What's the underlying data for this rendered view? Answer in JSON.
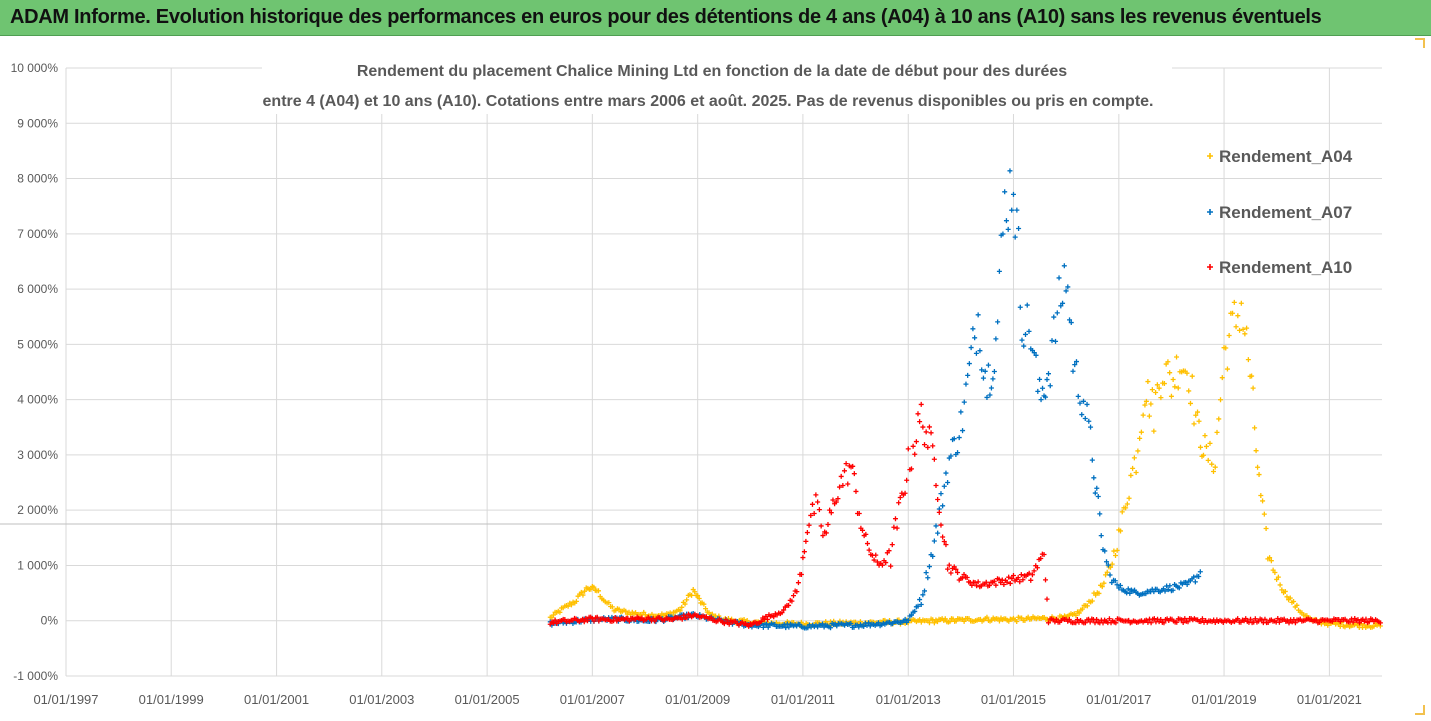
{
  "header": {
    "title": "ADAM Informe. Evolution historique des performances en euros pour des détentions de 4 ans (A04) à 10 ans (A10) sans les revenus éventuels"
  },
  "chart_data": {
    "type": "scatter",
    "title_lines": [
      "Rendement du placement Chalice Mining Ltd en fonction de la date de début pour des durées",
      "entre 4 (A04) et 10 ans (A10).  Cotations entre mars 2006 et août. 2025. Pas de revenus disponibles ou pris en compte."
    ],
    "ylim": [
      -1000,
      10000
    ],
    "y_unit": "%",
    "y_ticks": [
      "-1 000%",
      "0%",
      "1 000%",
      "2 000%",
      "3 000%",
      "4 000%",
      "5 000%",
      "6 000%",
      "7 000%",
      "8 000%",
      "9 000%",
      "10 000%"
    ],
    "y_tick_values": [
      -1000,
      0,
      1000,
      2000,
      3000,
      4000,
      5000,
      6000,
      7000,
      8000,
      9000,
      10000
    ],
    "x_range": [
      "1997-01-01",
      "2022-01-01"
    ],
    "x_ticks": [
      "01/01/1997",
      "01/01/1999",
      "01/01/2001",
      "01/01/2003",
      "01/01/2005",
      "01/01/2007",
      "01/01/2009",
      "01/01/2011",
      "01/01/2013",
      "01/01/2015",
      "01/01/2017",
      "01/01/2019",
      "01/01/2021"
    ],
    "x_tick_dates": [
      "1997-01-01",
      "1999-01-01",
      "2001-01-01",
      "2003-01-01",
      "2005-01-01",
      "2007-01-01",
      "2009-01-01",
      "2011-01-01",
      "2013-01-01",
      "2015-01-01",
      "2017-01-01",
      "2019-01-01",
      "2021-01-01"
    ],
    "grid": true,
    "legend_position": "right",
    "marker": "+",
    "series": [
      {
        "name": "Rendement_A04",
        "color": "#ffc000",
        "points": [
          [
            "2006-03-15",
            50
          ],
          [
            "2006-06-01",
            200
          ],
          [
            "2006-09-01",
            350
          ],
          [
            "2006-12-01",
            600
          ],
          [
            "2007-02-01",
            550
          ],
          [
            "2007-04-01",
            350
          ],
          [
            "2007-06-01",
            200
          ],
          [
            "2007-09-01",
            150
          ],
          [
            "2007-12-01",
            120
          ],
          [
            "2008-03-01",
            100
          ],
          [
            "2008-06-01",
            100
          ],
          [
            "2008-09-01",
            200
          ],
          [
            "2008-12-01",
            550
          ],
          [
            "2009-02-01",
            300
          ],
          [
            "2009-04-01",
            100
          ],
          [
            "2009-07-01",
            20
          ],
          [
            "2010-01-01",
            -30
          ],
          [
            "2010-07-01",
            -50
          ],
          [
            "2011-01-01",
            -60
          ],
          [
            "2011-07-01",
            -50
          ],
          [
            "2012-01-01",
            -40
          ],
          [
            "2012-07-01",
            -30
          ],
          [
            "2013-01-01",
            -20
          ],
          [
            "2013-07-01",
            0
          ],
          [
            "2014-01-01",
            10
          ],
          [
            "2014-07-01",
            30
          ],
          [
            "2015-01-01",
            20
          ],
          [
            "2015-07-01",
            40
          ],
          [
            "2016-01-01",
            50
          ],
          [
            "2016-04-01",
            150
          ],
          [
            "2016-07-01",
            400
          ],
          [
            "2016-10-01",
            700
          ],
          [
            "2017-01-01",
            1500
          ],
          [
            "2017-03-01",
            2300
          ],
          [
            "2017-05-01",
            3000
          ],
          [
            "2017-07-01",
            4200
          ],
          [
            "2017-09-01",
            3800
          ],
          [
            "2017-11-01",
            4600
          ],
          [
            "2018-01-01",
            4300
          ],
          [
            "2018-03-01",
            4700
          ],
          [
            "2018-05-01",
            4500
          ],
          [
            "2018-07-01",
            3500
          ],
          [
            "2018-09-01",
            3000
          ],
          [
            "2018-11-01",
            2900
          ],
          [
            "2019-01-01",
            4800
          ],
          [
            "2019-03-01",
            5300
          ],
          [
            "2019-05-01",
            5700
          ],
          [
            "2019-07-01",
            4500
          ],
          [
            "2019-09-01",
            2500
          ],
          [
            "2019-11-01",
            1200
          ],
          [
            "2020-01-01",
            800
          ],
          [
            "2020-03-01",
            500
          ],
          [
            "2020-06-01",
            200
          ],
          [
            "2020-09-01",
            0
          ],
          [
            "2021-01-01",
            -50
          ],
          [
            "2021-06-01",
            -80
          ],
          [
            "2022-01-01",
            -90
          ]
        ]
      },
      {
        "name": "Rendement_A07",
        "color": "#0070c0",
        "points": [
          [
            "2006-03-15",
            -50
          ],
          [
            "2007-01-01",
            20
          ],
          [
            "2007-07-01",
            30
          ],
          [
            "2008-01-01",
            0
          ],
          [
            "2008-06-01",
            30
          ],
          [
            "2008-12-01",
            100
          ],
          [
            "2009-06-01",
            0
          ],
          [
            "2010-01-01",
            -80
          ],
          [
            "2010-07-01",
            -90
          ],
          [
            "2011-01-01",
            -100
          ],
          [
            "2011-07-01",
            -90
          ],
          [
            "2012-01-01",
            -80
          ],
          [
            "2012-07-01",
            -50
          ],
          [
            "2013-01-01",
            0
          ],
          [
            "2013-04-01",
            400
          ],
          [
            "2013-07-01",
            1400
          ],
          [
            "2013-10-01",
            2800
          ],
          [
            "2014-01-01",
            3500
          ],
          [
            "2014-03-01",
            4500
          ],
          [
            "2014-05-01",
            5500
          ],
          [
            "2014-07-01",
            4300
          ],
          [
            "2014-09-01",
            5000
          ],
          [
            "2014-11-01",
            7500
          ],
          [
            "2015-01-01",
            8000
          ],
          [
            "2015-03-01",
            5500
          ],
          [
            "2015-05-01",
            5200
          ],
          [
            "2015-07-01",
            4000
          ],
          [
            "2015-09-01",
            4500
          ],
          [
            "2015-11-01",
            5500
          ],
          [
            "2016-01-01",
            6300
          ],
          [
            "2016-03-01",
            4500
          ],
          [
            "2016-05-01",
            4000
          ],
          [
            "2016-07-01",
            3000
          ],
          [
            "2016-09-01",
            1500
          ],
          [
            "2016-11-01",
            800
          ],
          [
            "2017-01-01",
            600
          ],
          [
            "2017-05-01",
            500
          ],
          [
            "2017-09-01",
            550
          ],
          [
            "2018-01-01",
            600
          ],
          [
            "2018-05-01",
            650
          ],
          [
            "2018-08-01",
            900
          ]
        ]
      },
      {
        "name": "Rendement_A10",
        "color": "#ff0000",
        "points": [
          [
            "2006-03-15",
            -30
          ],
          [
            "2007-01-01",
            30
          ],
          [
            "2007-07-01",
            20
          ],
          [
            "2008-01-01",
            40
          ],
          [
            "2008-07-01",
            20
          ],
          [
            "2008-12-01",
            100
          ],
          [
            "2009-06-01",
            0
          ],
          [
            "2010-01-01",
            -80
          ],
          [
            "2010-06-01",
            100
          ],
          [
            "2010-09-01",
            200
          ],
          [
            "2010-12-01",
            600
          ],
          [
            "2011-02-01",
            1700
          ],
          [
            "2011-04-01",
            2100
          ],
          [
            "2011-06-01",
            1500
          ],
          [
            "2011-09-01",
            2400
          ],
          [
            "2011-12-01",
            2800
          ],
          [
            "2012-03-01",
            1500
          ],
          [
            "2012-06-01",
            1000
          ],
          [
            "2012-09-01",
            1200
          ],
          [
            "2013-01-01",
            2800
          ],
          [
            "2013-04-01",
            3700
          ],
          [
            "2013-07-01",
            2900
          ],
          [
            "2013-10-01",
            1000
          ],
          [
            "2014-01-01",
            800
          ],
          [
            "2014-05-01",
            650
          ],
          [
            "2014-09-01",
            700
          ],
          [
            "2015-01-01",
            750
          ],
          [
            "2015-05-01",
            800
          ],
          [
            "2015-08-01",
            1200
          ],
          [
            "2015-09-01",
            0
          ],
          [
            "2022-01-01",
            0
          ]
        ]
      }
    ]
  }
}
